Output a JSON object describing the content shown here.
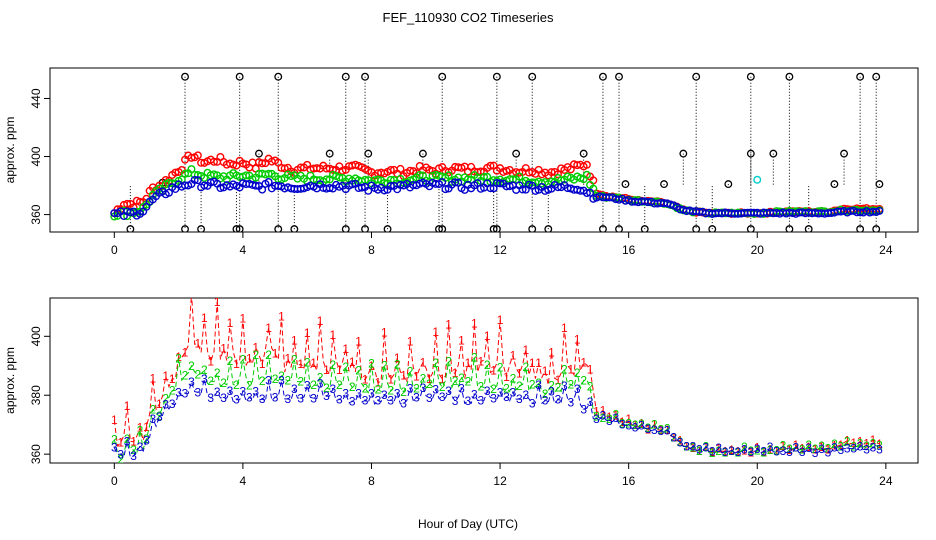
{
  "chart_data": {
    "title": "FEF_110930  CO2 Timeseries",
    "xlabel": "Hour of Day (UTC)",
    "colors": {
      "series1": "#ff0000",
      "series2": "#00cc00",
      "series3": "#0000cc",
      "reference": "#000000",
      "highlight": "#00cccc"
    },
    "panels": [
      {
        "type": "scatter",
        "ylabel": "approx. ppm",
        "xlim": [
          -2,
          25
        ],
        "ylim": [
          348,
          461
        ],
        "xticks": [
          "0",
          "4",
          "8",
          "12",
          "16",
          "20",
          "24"
        ],
        "xtick_values": [
          0,
          4,
          8,
          12,
          16,
          20,
          24
        ],
        "yticks": [
          "360",
          "400",
          "440"
        ],
        "ytick_values": [
          360,
          400,
          440
        ],
        "reference_points": {
          "x": [
            2.2,
            3.9,
            5.1,
            7.2,
            7.8,
            10.2,
            11.9,
            13.0,
            15.2,
            15.7,
            18.1,
            19.8,
            21.0,
            23.2,
            23.7
          ],
          "top": 455,
          "bottom": 350
        },
        "reference_mid": {
          "x": [
            0.5,
            1.5,
            2.7,
            3.8,
            4.5,
            5.6,
            6.7,
            7.9,
            8.5,
            9.6,
            10.1,
            11.8,
            12.5,
            13.5,
            14.6,
            15.9,
            16.5,
            17.1,
            17.7,
            18.6,
            19.1,
            19.8,
            20.5,
            21.6,
            22.4,
            22.7,
            23.8
          ],
          "y": [
            350,
            382,
            350,
            350,
            402,
            350,
            402,
            402,
            350,
            402,
            350,
            350,
            402,
            350,
            402,
            381,
            350,
            381,
            402,
            350,
            381,
            402,
            402,
            350,
            381,
            402,
            381
          ]
        },
        "highlight_point": {
          "x": 20.0,
          "y": 384
        }
      },
      {
        "type": "scatter",
        "ylabel": "approx. ppm",
        "xlim": [
          -2,
          25
        ],
        "ylim": [
          357,
          413
        ],
        "xticks": [
          "0",
          "4",
          "8",
          "12",
          "16",
          "20",
          "24"
        ],
        "xtick_values": [
          0,
          4,
          8,
          12,
          16,
          20,
          24
        ],
        "yticks": [
          "360",
          "380",
          "400"
        ],
        "ytick_values": [
          360,
          380,
          400
        ],
        "series_markers": [
          "1",
          "2",
          "3"
        ]
      }
    ],
    "series_profile": {
      "x": [
        0,
        0.3,
        0.6,
        0.9,
        1.2,
        1.5,
        1.8,
        2.1,
        2.4,
        2.8,
        3.2,
        3.6,
        4.0,
        4.4,
        4.8,
        5.2,
        5.6,
        6.0,
        6.5,
        7.0,
        7.5,
        8.0,
        8.5,
        9.0,
        9.5,
        10.0,
        10.5,
        11.0,
        11.5,
        12.0,
        12.5,
        13.0,
        13.5,
        14.0,
        14.4,
        14.7,
        15.0,
        15.3,
        15.6,
        15.9,
        16.2,
        16.5,
        16.8,
        17.1,
        17.4,
        17.7,
        18.0,
        18.5,
        19.0,
        19.5,
        19.8,
        20.2,
        20.7,
        21.2,
        21.7,
        22.2,
        22.7,
        23.2,
        23.8
      ],
      "s1": [
        361,
        368,
        367,
        369,
        378,
        381,
        387,
        393,
        401,
        396,
        398,
        395,
        396,
        393,
        398,
        394,
        391,
        392,
        392,
        392,
        392,
        389,
        390,
        389,
        391,
        390,
        392,
        391,
        392,
        392,
        390,
        391,
        389,
        391,
        393,
        395,
        375,
        373,
        372,
        371,
        370,
        369,
        369,
        368,
        366,
        363,
        362,
        361,
        361,
        361,
        361,
        361,
        362,
        362,
        362,
        362,
        364,
        364,
        364
      ],
      "s2": [
        361,
        361,
        362,
        364,
        373,
        377,
        382,
        386,
        389,
        387,
        386,
        386,
        387,
        386,
        388,
        386,
        385,
        385,
        385,
        385,
        385,
        383,
        384,
        384,
        385,
        385,
        385,
        385,
        385,
        385,
        384,
        384,
        383,
        384,
        385,
        386,
        373,
        372,
        372,
        370,
        370,
        369,
        369,
        368,
        366,
        363,
        362,
        361,
        361,
        361,
        361,
        361,
        362,
        362,
        362,
        362,
        363,
        363,
        363
      ],
      "s3": [
        360,
        360,
        361,
        363,
        370,
        374,
        378,
        380,
        382,
        381,
        380,
        379,
        380,
        379,
        380,
        380,
        379,
        380,
        380,
        380,
        379,
        378,
        379,
        379,
        380,
        380,
        380,
        379,
        380,
        380,
        379,
        379,
        378,
        379,
        379,
        376,
        372,
        372,
        371,
        370,
        369,
        369,
        368,
        368,
        366,
        363,
        362,
        361,
        361,
        361,
        361,
        361,
        361,
        361,
        361,
        361,
        362,
        362,
        362
      ]
    }
  }
}
